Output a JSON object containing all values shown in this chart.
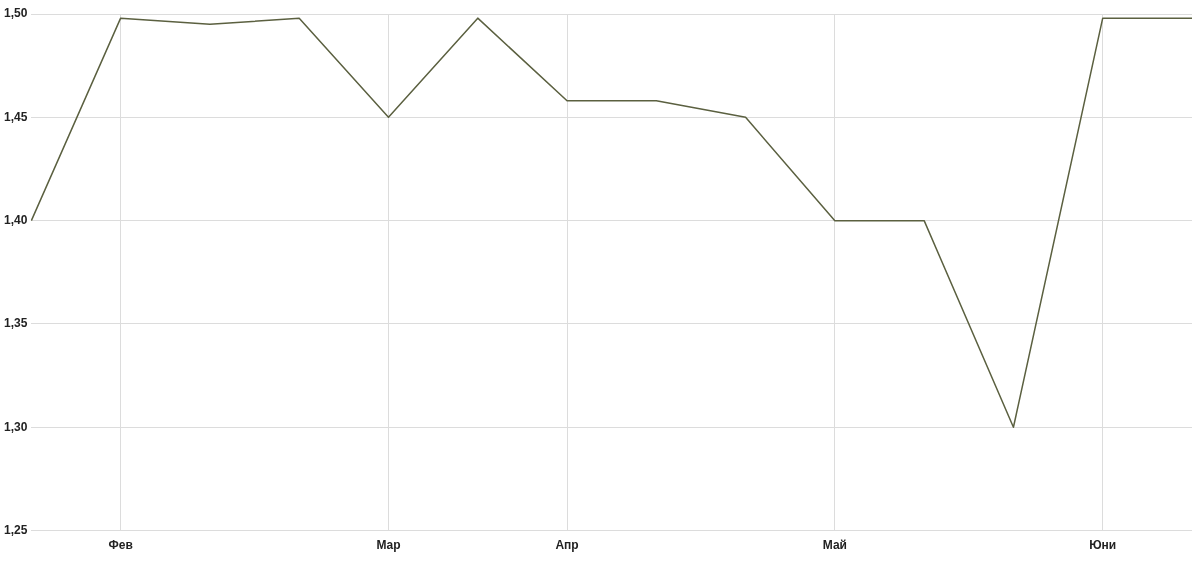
{
  "chart_data": {
    "type": "line",
    "categories": [
      null,
      "Фев",
      null,
      null,
      "Мар",
      null,
      "Апр",
      null,
      null,
      "Май",
      null,
      null,
      "Юни",
      null
    ],
    "series": [
      {
        "color": "#5b6040",
        "values": [
          1.4,
          1.498,
          1.495,
          1.498,
          1.45,
          1.498,
          1.458,
          1.458,
          1.45,
          1.4,
          1.4,
          1.3,
          1.498,
          1.498
        ]
      }
    ],
    "ylim": [
      1.25,
      1.5
    ],
    "yticks": [
      {
        "value": 1.25,
        "label": "1,25"
      },
      {
        "value": 1.3,
        "label": "1,30"
      },
      {
        "value": 1.35,
        "label": "1,35"
      },
      {
        "value": 1.4,
        "label": "1,40"
      },
      {
        "value": 1.45,
        "label": "1,45"
      },
      {
        "value": 1.5,
        "label": "1,50"
      }
    ],
    "grid": true,
    "legend": false,
    "marker": "none",
    "line_style": "solid"
  }
}
